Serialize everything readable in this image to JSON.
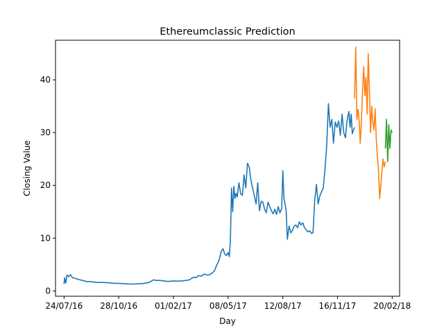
{
  "chart_data": {
    "type": "line",
    "title": "Ethereumclassic Prediction",
    "xlabel": "Day",
    "ylabel": "Closing Value",
    "x_ticks": [
      "24/07/16",
      "28/10/16",
      "01/02/17",
      "08/05/17",
      "12/08/17",
      "16/11/17",
      "20/02/18"
    ],
    "y_ticks": [
      0,
      10,
      20,
      30,
      40
    ],
    "xlim": [
      "2016-07-09",
      "2018-03-05"
    ],
    "ylim": [
      -1,
      47.5
    ],
    "grid": false,
    "series_colors": [
      "#1f77b4",
      "#ff7f0e",
      "#2ca02c"
    ],
    "series": [
      {
        "x": [
          "2016-07-24",
          "2016-07-25",
          "2016-07-27",
          "2016-07-29",
          "2016-08-01",
          "2016-08-04",
          "2016-08-08",
          "2016-08-12",
          "2016-08-18",
          "2016-08-25",
          "2016-09-01",
          "2016-09-10",
          "2016-09-20",
          "2016-10-01",
          "2016-10-10",
          "2016-10-20",
          "2016-10-28",
          "2016-11-10",
          "2016-11-20",
          "2016-12-01",
          "2016-12-10",
          "2016-12-20",
          "2016-12-28",
          "2017-01-02",
          "2017-01-08",
          "2017-01-15",
          "2017-01-22",
          "2017-02-01",
          "2017-02-10",
          "2017-02-20",
          "2017-03-01",
          "2017-03-08",
          "2017-03-12",
          "2017-03-17",
          "2017-03-22",
          "2017-03-27",
          "2017-04-02",
          "2017-04-06",
          "2017-04-10",
          "2017-04-14",
          "2017-04-18",
          "2017-04-22",
          "2017-04-26",
          "2017-04-29",
          "2017-05-02",
          "2017-05-05",
          "2017-05-08",
          "2017-05-10",
          "2017-05-12",
          "2017-05-14",
          "2017-05-16",
          "2017-05-18",
          "2017-05-20",
          "2017-05-22",
          "2017-05-24",
          "2017-05-27",
          "2017-05-30",
          "2017-06-02",
          "2017-06-05",
          "2017-06-08",
          "2017-06-11",
          "2017-06-14",
          "2017-06-17",
          "2017-06-20",
          "2017-06-23",
          "2017-06-26",
          "2017-06-29",
          "2017-07-02",
          "2017-07-05",
          "2017-07-08",
          "2017-07-11",
          "2017-07-14",
          "2017-07-17",
          "2017-07-20",
          "2017-07-23",
          "2017-07-26",
          "2017-07-29",
          "2017-08-01",
          "2017-08-04",
          "2017-08-07",
          "2017-08-10",
          "2017-08-12",
          "2017-08-14",
          "2017-08-16",
          "2017-08-18",
          "2017-08-20",
          "2017-08-23",
          "2017-08-26",
          "2017-08-29",
          "2017-09-01",
          "2017-09-04",
          "2017-09-07",
          "2017-09-10",
          "2017-09-13",
          "2017-09-16",
          "2017-09-19",
          "2017-09-22",
          "2017-09-25",
          "2017-09-28",
          "2017-10-01",
          "2017-10-04",
          "2017-10-07",
          "2017-10-10",
          "2017-10-13",
          "2017-10-16",
          "2017-10-19",
          "2017-10-22",
          "2017-10-25",
          "2017-10-28",
          "2017-10-31",
          "2017-11-03",
          "2017-11-06",
          "2017-11-09",
          "2017-11-12",
          "2017-11-15",
          "2017-11-18",
          "2017-11-21",
          "2017-11-24",
          "2017-11-27",
          "2017-11-30",
          "2017-12-02",
          "2017-12-04",
          "2017-12-06",
          "2017-12-08",
          "2017-12-10",
          "2017-12-12",
          "2017-12-14",
          "2017-12-16"
        ],
        "values": [
          1.3,
          2.5,
          1.5,
          3.0,
          2.7,
          3.1,
          2.5,
          2.4,
          2.2,
          2.0,
          1.8,
          1.75,
          1.6,
          1.6,
          1.55,
          1.45,
          1.45,
          1.35,
          1.3,
          1.35,
          1.4,
          1.6,
          2.1,
          2.0,
          2.0,
          1.9,
          1.8,
          1.9,
          1.85,
          1.95,
          2.1,
          2.6,
          2.5,
          2.9,
          2.8,
          3.2,
          3.0,
          3.1,
          3.4,
          3.8,
          4.9,
          5.8,
          7.5,
          8.0,
          7.0,
          6.7,
          7.3,
          6.5,
          9.5,
          19.5,
          15.0,
          19.8,
          17.5,
          18.5,
          17.8,
          20.5,
          18.4,
          18.1,
          22.0,
          19.5,
          24.2,
          23.5,
          21.0,
          19.5,
          18.0,
          16.5,
          20.5,
          15.2,
          17.0,
          16.8,
          15.5,
          14.8,
          16.8,
          16.0,
          15.2,
          14.6,
          15.5,
          14.5,
          16.0,
          14.8,
          15.6,
          22.8,
          17.5,
          16.5,
          15.0,
          9.8,
          12.3,
          11.0,
          11.5,
          12.3,
          12.5,
          12.0,
          13.1,
          12.5,
          12.9,
          12.0,
          11.6,
          11.2,
          11.4,
          10.9,
          11.0,
          17.0,
          20.2,
          16.5,
          18.0,
          18.8,
          19.5,
          23.0,
          27.5,
          35.5,
          31.0,
          32.5,
          28.0,
          32.0,
          31.0,
          32.2,
          29.5,
          33.5,
          30.0,
          29.0,
          31.5,
          33.0,
          34.0,
          31.0,
          33.5,
          29.8,
          30.5,
          31.0
        ]
      },
      {
        "x": [
          "2017-12-16",
          "2017-12-18",
          "2017-12-20",
          "2017-12-22",
          "2017-12-24",
          "2017-12-26",
          "2017-12-28",
          "2017-12-30",
          "2018-01-01",
          "2018-01-03",
          "2018-01-05",
          "2018-01-07",
          "2018-01-09",
          "2018-01-11",
          "2018-01-13",
          "2018-01-15",
          "2018-01-17",
          "2018-01-19",
          "2018-01-21",
          "2018-01-23",
          "2018-01-25",
          "2018-01-27",
          "2018-01-29",
          "2018-01-31",
          "2018-02-02",
          "2018-02-04",
          "2018-02-06",
          "2018-02-08"
        ],
        "values": [
          36.5,
          46.2,
          32.5,
          34.4,
          32.2,
          28.0,
          32.5,
          38.0,
          42.5,
          37.0,
          40.5,
          33.5,
          45.0,
          38.0,
          30.0,
          35.0,
          32.0,
          30.5,
          34.5,
          29.0,
          25.5,
          23.0,
          17.5,
          20.0,
          22.5,
          25.0,
          23.5,
          24.5
        ]
      },
      {
        "x": [
          "2018-02-08",
          "2018-02-10",
          "2018-02-12",
          "2018-02-14",
          "2018-02-16",
          "2018-02-18",
          "2018-02-20"
        ],
        "values": [
          27.0,
          32.5,
          24.5,
          31.5,
          27.0,
          30.5,
          30.0
        ]
      }
    ]
  }
}
